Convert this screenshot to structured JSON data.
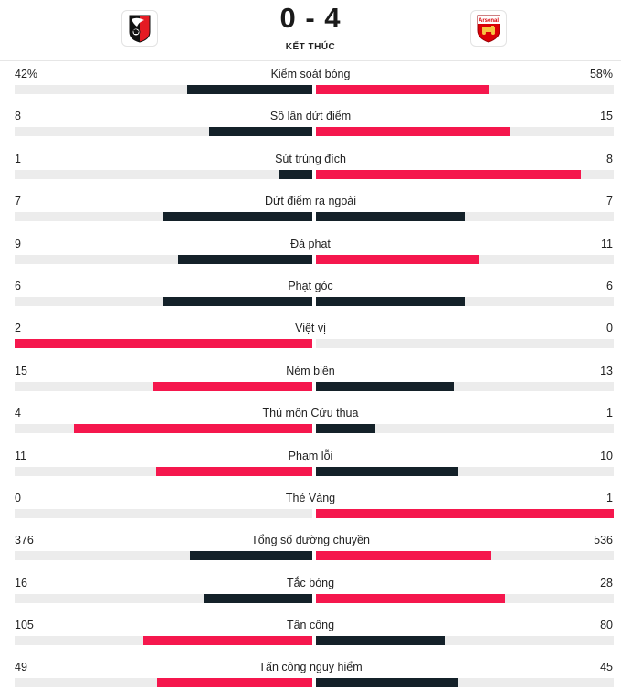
{
  "match": {
    "home_team": "Bournemouth",
    "away_team": "Arsenal",
    "score": "0 - 4",
    "status": "KẾT THÚC",
    "away_logo_text": "Arsenal"
  },
  "colors": {
    "win": "#f5174d",
    "lose": "#142129",
    "track": "#ececec"
  },
  "stats": [
    {
      "label": "Kiểm soát bóng",
      "home": "42%",
      "away": "58%",
      "home_value": 42,
      "away_value": 58
    },
    {
      "label": "Số lần dứt điểm",
      "home": "8",
      "away": "15",
      "home_value": 8,
      "away_value": 15
    },
    {
      "label": "Sút trúng đích",
      "home": "1",
      "away": "8",
      "home_value": 1,
      "away_value": 8
    },
    {
      "label": "Dứt điểm ra ngoài",
      "home": "7",
      "away": "7",
      "home_value": 7,
      "away_value": 7
    },
    {
      "label": "Đá phạt",
      "home": "9",
      "away": "11",
      "home_value": 9,
      "away_value": 11
    },
    {
      "label": "Phạt góc",
      "home": "6",
      "away": "6",
      "home_value": 6,
      "away_value": 6
    },
    {
      "label": "Việt vị",
      "home": "2",
      "away": "0",
      "home_value": 2,
      "away_value": 0
    },
    {
      "label": "Ném biên",
      "home": "15",
      "away": "13",
      "home_value": 15,
      "away_value": 13
    },
    {
      "label": "Thủ môn Cứu thua",
      "home": "4",
      "away": "1",
      "home_value": 4,
      "away_value": 1
    },
    {
      "label": "Phạm lỗi",
      "home": "11",
      "away": "10",
      "home_value": 11,
      "away_value": 10
    },
    {
      "label": "Thẻ Vàng",
      "home": "0",
      "away": "1",
      "home_value": 0,
      "away_value": 1
    },
    {
      "label": "Tổng số đường chuyền",
      "home": "376",
      "away": "536",
      "home_value": 376,
      "away_value": 536
    },
    {
      "label": "Tắc bóng",
      "home": "16",
      "away": "28",
      "home_value": 16,
      "away_value": 28
    },
    {
      "label": "Tấn công",
      "home": "105",
      "away": "80",
      "home_value": 105,
      "away_value": 80
    },
    {
      "label": "Tấn công nguy hiểm",
      "home": "49",
      "away": "45",
      "home_value": 49,
      "away_value": 45
    }
  ]
}
